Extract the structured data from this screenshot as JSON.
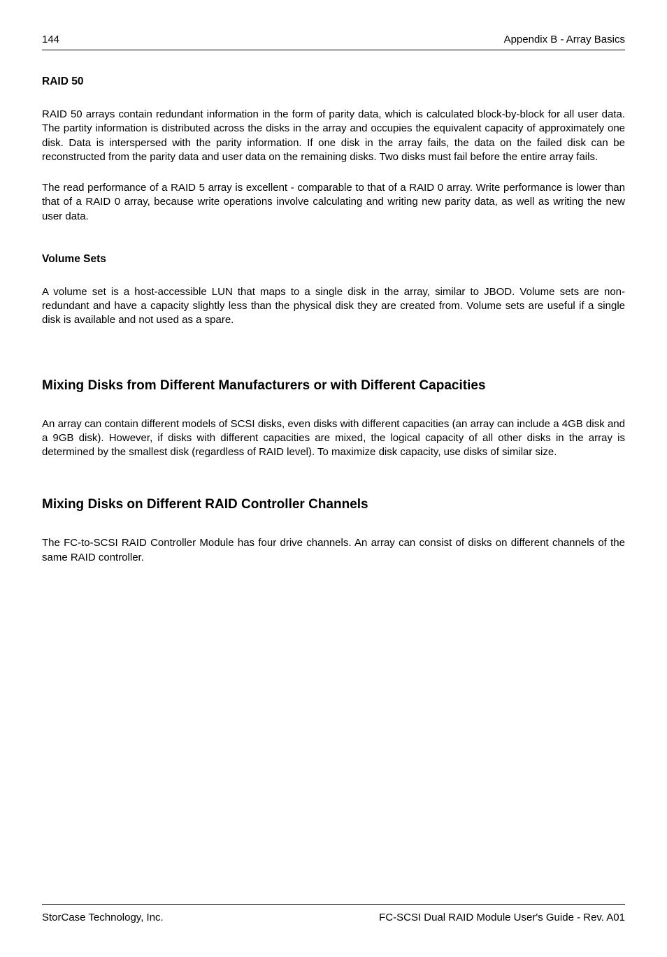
{
  "header": {
    "page_number": "144",
    "section": "Appendix B - Array Basics"
  },
  "raid50": {
    "title": "RAID 50",
    "p1": "RAID 50 arrays contain redundant information in the form of parity data, which is calculated block-by-block for all user data.  The partity information is distributed across the disks in the array and occupies the equivalent capacity of approximately one disk.  Data is interspersed with the parity information.  If one disk in the array fails, the data on the failed disk can be reconstructed from the parity data and user data on the remaining disks.  Two disks must fail before the entire array fails.",
    "p2": "The read performance of a RAID 5 array is excellent - comparable to that of a RAID 0 array.  Write performance is lower than that of a RAID 0 array, because write operations involve calculating and writing new parity data, as well as writing the new user data."
  },
  "volume_sets": {
    "title": "Volume Sets",
    "p1": "A volume set is a host-accessible LUN that maps to a single disk in the array, similar to JBOD.  Volume sets are non-redundant and have a capacity slightly less than the physical disk they are created from.  Volume sets are useful if a single disk  is available and not used as a spare."
  },
  "mixing_mfr": {
    "title": "Mixing Disks from Different Manufacturers or with Different Capacities",
    "p1": "An array can contain different models of SCSI disks, even disks with different capacities (an array can include a 4GB disk and a 9GB disk).  However, if disks with different capacities are mixed, the logical capacity of all other disks in the array is determined by the smallest disk (regardless of RAID level).  To maximize disk capacity, use disks of similar size."
  },
  "mixing_channels": {
    "title": "Mixing Disks on Different RAID Controller Channels",
    "p1": "The FC-to-SCSI RAID Controller Module has four drive channels.  An array can consist of disks on different channels of the same RAID controller."
  },
  "footer": {
    "left": "StorCase Technology, Inc.",
    "right": "FC-SCSI Dual RAID Module User's Guide - Rev. A01"
  }
}
